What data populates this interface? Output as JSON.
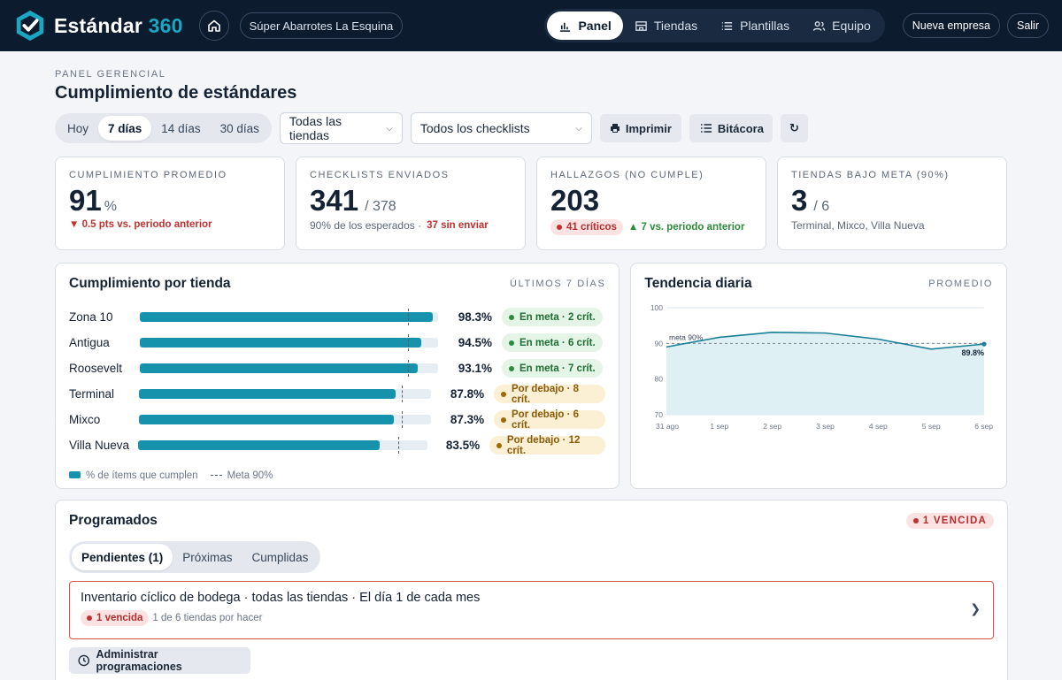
{
  "brand": {
    "name": "Estándar",
    "num": "360"
  },
  "company": "Súper Abarrotes La Esquina",
  "nav": [
    {
      "label": "Panel",
      "icon": "bar-chart-icon",
      "active": true
    },
    {
      "label": "Tiendas",
      "icon": "store-icon",
      "active": false
    },
    {
      "label": "Plantillas",
      "icon": "list-icon",
      "active": false
    },
    {
      "label": "Equipo",
      "icon": "users-icon",
      "active": false
    }
  ],
  "top_actions": {
    "new_company": "Nueva empresa",
    "logout": "Salir"
  },
  "header": {
    "eyebrow": "PANEL GERENCIAL",
    "title": "Cumplimiento de estándares"
  },
  "filters": {
    "ranges": [
      "Hoy",
      "7 días",
      "14 días",
      "30 días"
    ],
    "active_range": "7 días",
    "stores_select": "Todas las tiendas",
    "checklists_select": "Todos los checklists",
    "print_label": "Imprimir",
    "log_label": "Bitácora",
    "refresh": "↻"
  },
  "kpis": {
    "avg": {
      "label": "CUMPLIMIENTO PROMEDIO",
      "value": "91",
      "unit": "%",
      "delta": "▼ 0.5 pts vs. periodo anterior"
    },
    "sent": {
      "label": "CHECKLISTS ENVIADOS",
      "value": "341",
      "of": "/ 378",
      "sub": "90% de los esperados ·",
      "missing": "37 sin enviar"
    },
    "findings": {
      "label": "HALLAZGOS (NO CUMPLE)",
      "value": "203",
      "critical": "41 críticos",
      "delta": "▲ 7 vs. periodo anterior"
    },
    "below": {
      "label": "TIENDAS BAJO META (90%)",
      "value": "3",
      "of": "/ 6",
      "sub": "Terminal, Mixco, Villa Nueva"
    }
  },
  "store_panel": {
    "title": "Cumplimiento por tienda",
    "tag": "ÚLTIMOS 7 DÍAS",
    "target": 90,
    "rows": [
      {
        "name": "Zona 10",
        "pct": 98.3,
        "pct_label": "98.3%",
        "status": "ok",
        "status_label": "En meta · 2 crít."
      },
      {
        "name": "Antigua",
        "pct": 94.5,
        "pct_label": "94.5%",
        "status": "ok",
        "status_label": "En meta · 6 crít."
      },
      {
        "name": "Roosevelt",
        "pct": 93.1,
        "pct_label": "93.1%",
        "status": "ok",
        "status_label": "En meta · 7 crít."
      },
      {
        "name": "Terminal",
        "pct": 87.8,
        "pct_label": "87.8%",
        "status": "bad",
        "status_label": "Por debajo · 8 crít."
      },
      {
        "name": "Mixco",
        "pct": 87.3,
        "pct_label": "87.3%",
        "status": "bad",
        "status_label": "Por debajo · 6 crít."
      },
      {
        "name": "Villa Nueva",
        "pct": 83.5,
        "pct_label": "83.5%",
        "status": "bad",
        "status_label": "Por debajo · 12 crít."
      }
    ],
    "legend_fill": "% de ítems que cumplen",
    "legend_target": "Meta 90%"
  },
  "trend_panel": {
    "title": "Tendencia diaria",
    "tag": "PROMEDIO"
  },
  "chart_data": {
    "type": "area",
    "x": [
      "31 ago",
      "1 sep",
      "2 sep",
      "3 sep",
      "4 sep",
      "5 sep",
      "6 sep"
    ],
    "values": [
      89.0,
      91.7,
      93.1,
      92.9,
      91.2,
      88.4,
      89.8
    ],
    "ylim": [
      70,
      100
    ],
    "yticks": [
      100,
      90,
      80,
      70
    ],
    "target": 90,
    "target_label": "meta 90%",
    "last_label": "89.8%",
    "grid": true
  },
  "scheduled": {
    "title": "Programados",
    "overdue_badge": "1 VENCIDA",
    "tabs": [
      "Pendientes (1)",
      "Próximas",
      "Cumplidas"
    ],
    "item": {
      "title": "Inventario cíclico de bodega · todas las tiendas · El día 1 de cada mes",
      "overdue": "1 vencida",
      "progress": "1 de 6 tiendas por hacer"
    },
    "manage_label": "Administrar programaciones"
  },
  "colors": {
    "accent": "#1792ad",
    "nav_bg": "#0d1b2e",
    "danger": "#c2302f",
    "ok": "#2d8b3f",
    "warn": "#a06807"
  }
}
